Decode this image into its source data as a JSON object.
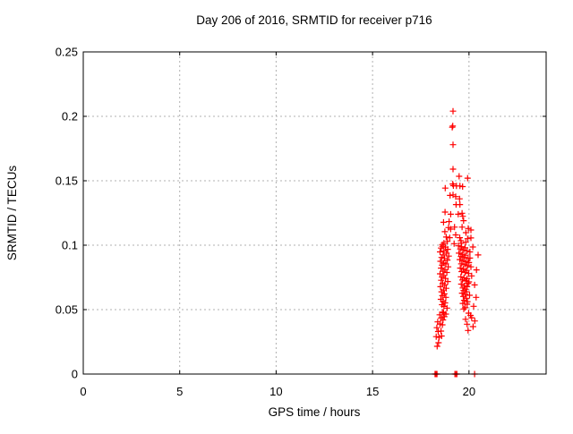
{
  "page": {
    "background": "#ffffff",
    "title": "Day 206 of 2016, SRMTID for receiver p716"
  },
  "chart_data": {
    "type": "scatter",
    "title": "Day 206 of 2016, SRMTID for receiver p716",
    "xlabel": "GPS time / hours",
    "ylabel": "SRMTID / TECUs",
    "xlim": [
      0,
      24
    ],
    "ylim": [
      0,
      0.25
    ],
    "grid": true,
    "grid_style": "dashed",
    "legend": "none",
    "marker_symbol": "plus",
    "marker_color": "#ff0000",
    "grid_color": "#b0b0b0",
    "axis_color": "#000000",
    "x_ticks": [
      {
        "value": 0,
        "label": "0"
      },
      {
        "value": 5,
        "label": "5"
      },
      {
        "value": 10,
        "label": "10"
      },
      {
        "value": 15,
        "label": "15"
      },
      {
        "value": 20,
        "label": "20"
      }
    ],
    "y_ticks": [
      {
        "value": 0,
        "label": "0"
      },
      {
        "value": 0.05,
        "label": "0.05"
      },
      {
        "value": 0.1,
        "label": "0.1"
      },
      {
        "value": 0.15,
        "label": "0.15"
      },
      {
        "value": 0.2,
        "label": "0.2"
      },
      {
        "value": 0.25,
        "label": "0.25"
      }
    ],
    "series": [
      {
        "name": "SRMTID",
        "points": [
          [
            19.17,
            0.204
          ],
          [
            19.13,
            0.1915
          ],
          [
            19.16,
            0.1925
          ],
          [
            19.17,
            0.178
          ],
          [
            19.17,
            0.159
          ],
          [
            19.49,
            0.1535
          ],
          [
            19.93,
            0.152
          ],
          [
            18.77,
            0.1443
          ],
          [
            19.19,
            0.1462
          ],
          [
            19.35,
            0.146
          ],
          [
            19.53,
            0.146
          ],
          [
            19.67,
            0.1455
          ],
          [
            19.16,
            0.1475
          ],
          [
            19.17,
            0.139
          ],
          [
            19.02,
            0.1386
          ],
          [
            19.31,
            0.1377
          ],
          [
            19.51,
            0.136
          ],
          [
            19.33,
            0.1315
          ],
          [
            19.53,
            0.1315
          ],
          [
            18.76,
            0.1257
          ],
          [
            19.05,
            0.124
          ],
          [
            19.44,
            0.124
          ],
          [
            19.64,
            0.1248
          ],
          [
            19.68,
            0.1224
          ],
          [
            19.72,
            0.119
          ],
          [
            18.68,
            0.1178
          ],
          [
            18.97,
            0.1183
          ],
          [
            19.05,
            0.1125
          ],
          [
            18.94,
            0.1137
          ],
          [
            19.25,
            0.114
          ],
          [
            19.64,
            0.114
          ],
          [
            20.1,
            0.1118
          ],
          [
            18.75,
            0.1105
          ],
          [
            19.96,
            0.113
          ],
          [
            19.31,
            0.108
          ],
          [
            19.84,
            0.1097
          ],
          [
            18.82,
            0.1063
          ],
          [
            19.0,
            0.1058
          ],
          [
            19.52,
            0.1058
          ],
          [
            20.1,
            0.1056
          ],
          [
            19.93,
            0.1051
          ],
          [
            19.58,
            0.1035
          ],
          [
            19.83,
            0.1023
          ],
          [
            18.88,
            0.103
          ],
          [
            18.7,
            0.1016
          ],
          [
            19.23,
            0.1012
          ],
          [
            19.6,
            0.1015
          ],
          [
            18.62,
            0.1005
          ],
          [
            18.62,
            0.0992
          ],
          [
            18.78,
            0.0985
          ],
          [
            18.55,
            0.0978
          ],
          [
            18.9,
            0.0968
          ],
          [
            18.7,
            0.0955
          ],
          [
            18.5,
            0.0948
          ],
          [
            18.84,
            0.0938
          ],
          [
            18.66,
            0.0925
          ],
          [
            18.95,
            0.0915
          ],
          [
            18.58,
            0.0905
          ],
          [
            18.73,
            0.0898
          ],
          [
            18.88,
            0.0885
          ],
          [
            18.52,
            0.0875
          ],
          [
            18.68,
            0.0862
          ],
          [
            18.8,
            0.0855
          ],
          [
            18.6,
            0.0845
          ],
          [
            18.92,
            0.0832
          ],
          [
            18.55,
            0.0822
          ],
          [
            18.75,
            0.0812
          ],
          [
            18.65,
            0.0798
          ],
          [
            18.85,
            0.0788
          ],
          [
            18.5,
            0.0778
          ],
          [
            18.7,
            0.0765
          ],
          [
            18.6,
            0.0752
          ],
          [
            18.78,
            0.0742
          ],
          [
            18.56,
            0.0728
          ],
          [
            18.9,
            0.0718
          ],
          [
            18.64,
            0.0705
          ],
          [
            18.74,
            0.0692
          ],
          [
            18.52,
            0.0678
          ],
          [
            18.82,
            0.0665
          ],
          [
            18.68,
            0.0652
          ],
          [
            18.58,
            0.0638
          ],
          [
            18.72,
            0.0622
          ],
          [
            18.62,
            0.0608
          ],
          [
            18.8,
            0.0595
          ],
          [
            18.54,
            0.058
          ],
          [
            18.66,
            0.0565
          ],
          [
            18.76,
            0.0552
          ],
          [
            18.6,
            0.0538
          ],
          [
            18.7,
            0.0525
          ],
          [
            18.86,
            0.0512
          ],
          [
            19.45,
            0.0995
          ],
          [
            19.62,
            0.0988
          ],
          [
            19.8,
            0.098
          ],
          [
            20.2,
            0.0986
          ],
          [
            19.55,
            0.097
          ],
          [
            19.72,
            0.0962
          ],
          [
            19.9,
            0.0955
          ],
          [
            20.05,
            0.0948
          ],
          [
            19.48,
            0.0938
          ],
          [
            19.65,
            0.093
          ],
          [
            19.82,
            0.0922
          ],
          [
            20.47,
            0.0924
          ],
          [
            19.58,
            0.0912
          ],
          [
            19.75,
            0.0905
          ],
          [
            19.95,
            0.0898
          ],
          [
            20.05,
            0.09
          ],
          [
            19.52,
            0.0888
          ],
          [
            19.68,
            0.088
          ],
          [
            19.85,
            0.0872
          ],
          [
            20.0,
            0.0865
          ],
          [
            19.6,
            0.0855
          ],
          [
            19.78,
            0.0848
          ],
          [
            19.92,
            0.084
          ],
          [
            20.1,
            0.0832
          ],
          [
            19.55,
            0.0822
          ],
          [
            19.7,
            0.0815
          ],
          [
            20.39,
            0.0808
          ],
          [
            19.88,
            0.0805
          ],
          [
            19.62,
            0.0795
          ],
          [
            19.8,
            0.0788
          ],
          [
            19.98,
            0.078
          ],
          [
            20.14,
            0.0762
          ],
          [
            19.58,
            0.0755
          ],
          [
            19.74,
            0.0748
          ],
          [
            19.9,
            0.074
          ],
          [
            19.66,
            0.073
          ],
          [
            19.84,
            0.0722
          ],
          [
            20.0,
            0.0715
          ],
          [
            19.95,
            0.0704
          ],
          [
            19.6,
            0.0698
          ],
          [
            20.29,
            0.0692
          ],
          [
            19.76,
            0.0685
          ],
          [
            19.9,
            0.0678
          ],
          [
            19.68,
            0.0668
          ],
          [
            19.82,
            0.0658
          ],
          [
            19.72,
            0.0648
          ],
          [
            19.88,
            0.0638
          ],
          [
            19.64,
            0.0628
          ],
          [
            19.8,
            0.0618
          ],
          [
            20.03,
            0.0611
          ],
          [
            19.7,
            0.0602
          ],
          [
            20.37,
            0.0595
          ],
          [
            19.86,
            0.0588
          ],
          [
            19.75,
            0.0572
          ],
          [
            19.92,
            0.0562
          ],
          [
            19.9,
            0.0542
          ],
          [
            19.68,
            0.0548
          ],
          [
            20.24,
            0.0526
          ],
          [
            19.8,
            0.0515
          ],
          [
            19.73,
            0.0505
          ],
          [
            18.42,
            0.0243
          ],
          [
            18.35,
            0.0215
          ],
          [
            18.3,
            0.029
          ],
          [
            18.45,
            0.0285
          ],
          [
            18.55,
            0.0333
          ],
          [
            18.62,
            0.0382
          ],
          [
            18.5,
            0.0389
          ],
          [
            18.4,
            0.033
          ],
          [
            18.58,
            0.0295
          ],
          [
            18.65,
            0.042
          ],
          [
            18.72,
            0.0445
          ],
          [
            18.48,
            0.046
          ],
          [
            18.38,
            0.0405
          ],
          [
            18.68,
            0.0475
          ],
          [
            18.56,
            0.0435
          ],
          [
            18.8,
            0.0465
          ],
          [
            18.33,
            0.036
          ],
          [
            18.62,
            0.048
          ],
          [
            20.14,
            0.0437
          ],
          [
            19.9,
            0.0387
          ],
          [
            20.21,
            0.0368
          ],
          [
            19.98,
            0.0472
          ],
          [
            20.08,
            0.0455
          ],
          [
            19.82,
            0.0425
          ],
          [
            20.3,
            0.0412
          ],
          [
            19.95,
            0.0338
          ],
          [
            18.24,
            0
          ],
          [
            18.29,
            0
          ],
          [
            18.34,
            0
          ],
          [
            19.27,
            0
          ],
          [
            19.32,
            0
          ],
          [
            19.37,
            0
          ],
          [
            20.29,
            0
          ]
        ]
      }
    ]
  }
}
